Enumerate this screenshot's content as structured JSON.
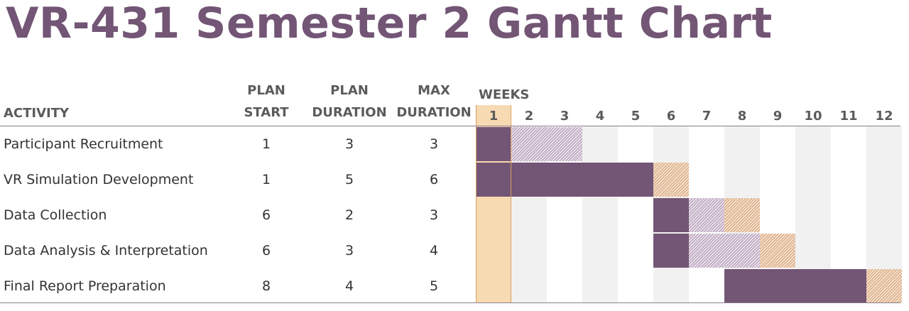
{
  "title": "VR-431 Semester 2 Gantt Chart",
  "headers": {
    "activity": "ACTIVITY",
    "plan_start_1": "PLAN",
    "plan_start_2": "START",
    "plan_duration_1": "PLAN",
    "plan_duration_2": "DURATION",
    "max_duration_1": "MAX",
    "max_duration_2": "DURATION",
    "weeks": "WEEKS"
  },
  "colors": {
    "plan": "#735575",
    "actual": "#b9a3bb",
    "over_max": "#d9a981",
    "beyond_plan": "#e8a94c",
    "current_week": "#f8dab2",
    "title": "#735575"
  },
  "chart_data": {
    "type": "table",
    "title": "VR-431 Semester 2 Gantt Chart",
    "weeks": [
      "1",
      "2",
      "3",
      "4",
      "5",
      "6",
      "7",
      "8",
      "9",
      "10",
      "11",
      "12"
    ],
    "current_week": 1,
    "columns": [
      "ACTIVITY",
      "PLAN START",
      "PLAN DURATION",
      "MAX DURATION"
    ],
    "rows": [
      {
        "activity": "Participant Recruitment",
        "plan_start": 1,
        "plan_duration": 3,
        "max_duration": 3,
        "actual_start": 1,
        "actual_duration": 1
      },
      {
        "activity": "VR Simulation Development",
        "plan_start": 1,
        "plan_duration": 5,
        "max_duration": 6,
        "actual_start": 1,
        "actual_duration": 5
      },
      {
        "activity": "Data Collection",
        "plan_start": 6,
        "plan_duration": 2,
        "max_duration": 3,
        "actual_start": 6,
        "actual_duration": 1
      },
      {
        "activity": "Data Analysis & Interpretation",
        "plan_start": 6,
        "plan_duration": 3,
        "max_duration": 4,
        "actual_start": 6,
        "actual_duration": 1
      },
      {
        "activity": "Final Report Preparation",
        "plan_start": 8,
        "plan_duration": 4,
        "max_duration": 5,
        "actual_start": 8,
        "actual_duration": 4
      }
    ]
  }
}
